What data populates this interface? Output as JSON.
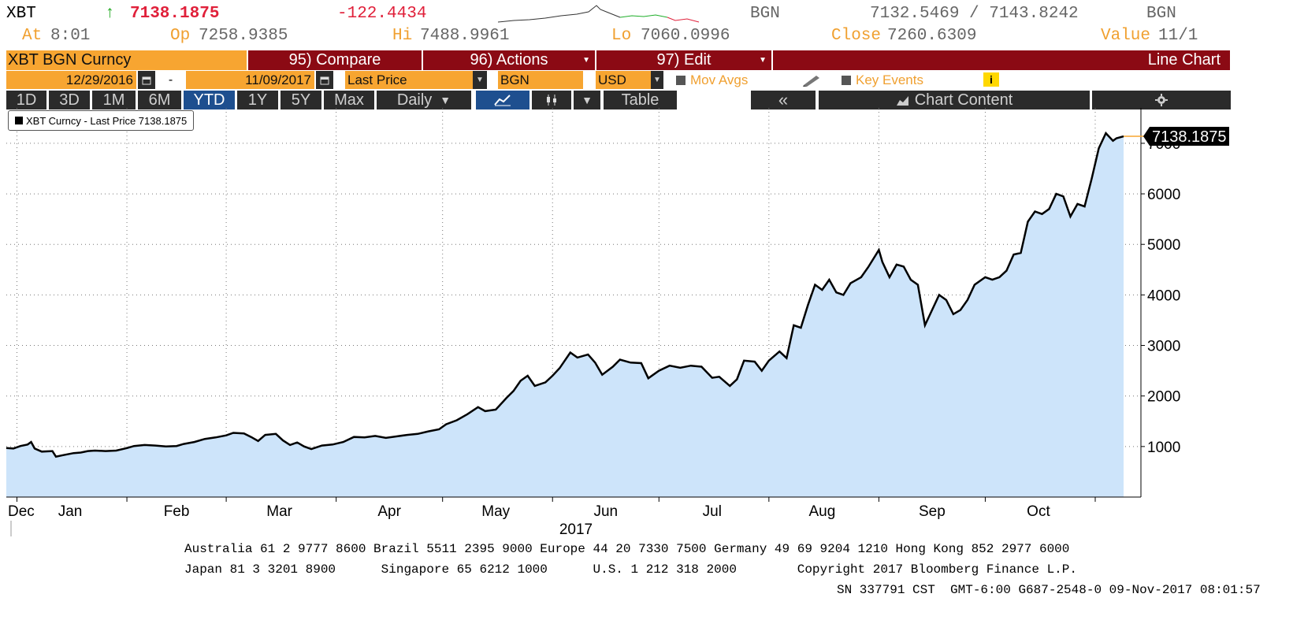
{
  "quote": {
    "ticker": "XBT",
    "arrow": "↑",
    "last": "7138.1875",
    "change": "-122.4434",
    "source_left": "BGN",
    "bid_ask": "7132.5469 / 7143.8242",
    "source_right": "BGN",
    "at_label": "At",
    "at_time": "8:01",
    "op_label": "Op",
    "op_value": "7258.9385",
    "hi_label": "Hi",
    "hi_value": "7488.9961",
    "lo_label": "Lo",
    "lo_value": "7060.0996",
    "close_label": "Close",
    "close_value": "7260.6309",
    "value_label": "Value",
    "value_value": "11/1"
  },
  "toolbar": {
    "security": "XBT BGN Curncy",
    "compare": "95) Compare",
    "actions": "96) Actions",
    "edit": "97) Edit",
    "chart_type": "Line Chart",
    "start_date": "12/29/2016",
    "dash": "-",
    "end_date": "11/09/2017",
    "field": "Last Price",
    "source": "BGN",
    "currency": "USD",
    "mov_avgs": "Mov Avgs",
    "key_events": "Key Events",
    "info": "i",
    "periods": [
      "1D",
      "3D",
      "1M",
      "6M",
      "YTD",
      "1Y",
      "5Y",
      "Max"
    ],
    "frequency": "Daily",
    "table": "Table",
    "collapse": "«",
    "chart_content": "Chart Content",
    "caret": "▼",
    "line_icon": "line-chart-icon",
    "candles_icon": "candles-icon",
    "gear_icon": "gear-icon",
    "pencil_icon": "pencil-icon",
    "calendar_icon": "calendar-icon"
  },
  "legend": {
    "text": "XBT Curncy - Last Price 7138.1875"
  },
  "colors": {
    "line": "#000000",
    "fill": "#cde4fa",
    "last_label_bg": "#000000",
    "accent_orange": "#f7a531",
    "accent_maroon": "#8b0a14"
  },
  "chart_data": {
    "type": "area",
    "title": "",
    "xlabel": "2017",
    "ylabel": "",
    "ylim": [
      0,
      7700
    ],
    "y_ticks": [
      1000,
      2000,
      3000,
      4000,
      5000,
      6000,
      7000
    ],
    "x_tick_labels": [
      "Dec",
      "Jan",
      "Feb",
      "Mar",
      "Apr",
      "May",
      "Jun",
      "Jul",
      "Aug",
      "Sep",
      "Oct"
    ],
    "x_start": "2016-12-29",
    "x_end": "2017-11-09",
    "last_value_label": "7138.1875",
    "grid": true,
    "legend_position": "top-left",
    "series": [
      {
        "name": "XBT Curncy - Last Price",
        "points": [
          [
            "2016-12-29",
            970
          ],
          [
            "2016-12-31",
            960
          ],
          [
            "2017-01-02",
            1010
          ],
          [
            "2017-01-04",
            1040
          ],
          [
            "2017-01-05",
            1090
          ],
          [
            "2017-01-06",
            960
          ],
          [
            "2017-01-08",
            900
          ],
          [
            "2017-01-11",
            910
          ],
          [
            "2017-01-12",
            800
          ],
          [
            "2017-01-14",
            830
          ],
          [
            "2017-01-17",
            870
          ],
          [
            "2017-01-19",
            880
          ],
          [
            "2017-01-21",
            910
          ],
          [
            "2017-01-23",
            920
          ],
          [
            "2017-01-26",
            910
          ],
          [
            "2017-01-29",
            920
          ],
          [
            "2017-02-01",
            970
          ],
          [
            "2017-02-03",
            1010
          ],
          [
            "2017-02-06",
            1030
          ],
          [
            "2017-02-09",
            1020
          ],
          [
            "2017-02-12",
            1000
          ],
          [
            "2017-02-15",
            1010
          ],
          [
            "2017-02-17",
            1050
          ],
          [
            "2017-02-20",
            1090
          ],
          [
            "2017-02-23",
            1150
          ],
          [
            "2017-02-26",
            1180
          ],
          [
            "2017-03-01",
            1220
          ],
          [
            "2017-03-03",
            1270
          ],
          [
            "2017-03-06",
            1260
          ],
          [
            "2017-03-08",
            1190
          ],
          [
            "2017-03-10",
            1110
          ],
          [
            "2017-03-12",
            1230
          ],
          [
            "2017-03-15",
            1250
          ],
          [
            "2017-03-17",
            1120
          ],
          [
            "2017-03-19",
            1030
          ],
          [
            "2017-03-21",
            1080
          ],
          [
            "2017-03-23",
            1000
          ],
          [
            "2017-03-25",
            950
          ],
          [
            "2017-03-28",
            1020
          ],
          [
            "2017-03-31",
            1040
          ],
          [
            "2017-04-03",
            1090
          ],
          [
            "2017-04-06",
            1190
          ],
          [
            "2017-04-09",
            1180
          ],
          [
            "2017-04-12",
            1210
          ],
          [
            "2017-04-15",
            1170
          ],
          [
            "2017-04-18",
            1200
          ],
          [
            "2017-04-21",
            1230
          ],
          [
            "2017-04-24",
            1250
          ],
          [
            "2017-04-27",
            1300
          ],
          [
            "2017-04-30",
            1340
          ],
          [
            "2017-05-02",
            1440
          ],
          [
            "2017-05-05",
            1520
          ],
          [
            "2017-05-08",
            1640
          ],
          [
            "2017-05-11",
            1780
          ],
          [
            "2017-05-13",
            1700
          ],
          [
            "2017-05-16",
            1730
          ],
          [
            "2017-05-19",
            1960
          ],
          [
            "2017-05-21",
            2100
          ],
          [
            "2017-05-23",
            2300
          ],
          [
            "2017-05-25",
            2400
          ],
          [
            "2017-05-27",
            2200
          ],
          [
            "2017-05-30",
            2270
          ],
          [
            "2017-06-01",
            2400
          ],
          [
            "2017-06-03",
            2550
          ],
          [
            "2017-06-06",
            2860
          ],
          [
            "2017-06-08",
            2760
          ],
          [
            "2017-06-11",
            2820
          ],
          [
            "2017-06-13",
            2660
          ],
          [
            "2017-06-15",
            2420
          ],
          [
            "2017-06-18",
            2580
          ],
          [
            "2017-06-20",
            2720
          ],
          [
            "2017-06-23",
            2660
          ],
          [
            "2017-06-26",
            2650
          ],
          [
            "2017-06-28",
            2350
          ],
          [
            "2017-07-01",
            2500
          ],
          [
            "2017-07-04",
            2600
          ],
          [
            "2017-07-07",
            2560
          ],
          [
            "2017-07-10",
            2600
          ],
          [
            "2017-07-13",
            2580
          ],
          [
            "2017-07-16",
            2360
          ],
          [
            "2017-07-18",
            2380
          ],
          [
            "2017-07-21",
            2200
          ],
          [
            "2017-07-23",
            2330
          ],
          [
            "2017-07-25",
            2700
          ],
          [
            "2017-07-28",
            2680
          ],
          [
            "2017-07-30",
            2500
          ],
          [
            "2017-08-01",
            2700
          ],
          [
            "2017-08-04",
            2880
          ],
          [
            "2017-08-06",
            2750
          ],
          [
            "2017-08-08",
            3400
          ],
          [
            "2017-08-10",
            3350
          ],
          [
            "2017-08-12",
            3800
          ],
          [
            "2017-08-14",
            4200
          ],
          [
            "2017-08-16",
            4100
          ],
          [
            "2017-08-18",
            4300
          ],
          [
            "2017-08-20",
            4050
          ],
          [
            "2017-08-22",
            4000
          ],
          [
            "2017-08-24",
            4230
          ],
          [
            "2017-08-27",
            4350
          ],
          [
            "2017-08-29",
            4550
          ],
          [
            "2017-09-01",
            4890
          ],
          [
            "2017-09-02",
            4650
          ],
          [
            "2017-09-04",
            4350
          ],
          [
            "2017-09-06",
            4600
          ],
          [
            "2017-09-08",
            4560
          ],
          [
            "2017-09-10",
            4300
          ],
          [
            "2017-09-12",
            4200
          ],
          [
            "2017-09-14",
            3400
          ],
          [
            "2017-09-16",
            3700
          ],
          [
            "2017-09-18",
            4000
          ],
          [
            "2017-09-20",
            3900
          ],
          [
            "2017-09-22",
            3620
          ],
          [
            "2017-09-24",
            3700
          ],
          [
            "2017-09-26",
            3900
          ],
          [
            "2017-09-28",
            4200
          ],
          [
            "2017-10-01",
            4350
          ],
          [
            "2017-10-03",
            4300
          ],
          [
            "2017-10-05",
            4350
          ],
          [
            "2017-10-07",
            4480
          ],
          [
            "2017-10-09",
            4800
          ],
          [
            "2017-10-11",
            4830
          ],
          [
            "2017-10-13",
            5450
          ],
          [
            "2017-10-15",
            5650
          ],
          [
            "2017-10-17",
            5600
          ],
          [
            "2017-10-19",
            5700
          ],
          [
            "2017-10-21",
            6000
          ],
          [
            "2017-10-23",
            5950
          ],
          [
            "2017-10-25",
            5550
          ],
          [
            "2017-10-27",
            5800
          ],
          [
            "2017-10-29",
            5750
          ],
          [
            "2017-10-31",
            6300
          ],
          [
            "2017-11-02",
            6900
          ],
          [
            "2017-11-04",
            7200
          ],
          [
            "2017-11-06",
            7050
          ],
          [
            "2017-11-07",
            7100
          ],
          [
            "2017-11-09",
            7138
          ]
        ]
      }
    ]
  },
  "footer": {
    "line1": "Australia 61 2 9777 8600 Brazil 5511 2395 9000 Europe 44 20 7330 7500 Germany 49 69 9204 1210 Hong Kong 852 2977 6000",
    "line2": "Japan 81 3 3201 8900      Singapore 65 6212 1000      U.S. 1 212 318 2000        Copyright 2017 Bloomberg Finance L.P.",
    "line3": "SN 337791 CST  GMT-6:00 G687-2548-0 09-Nov-2017 08:01:57"
  }
}
